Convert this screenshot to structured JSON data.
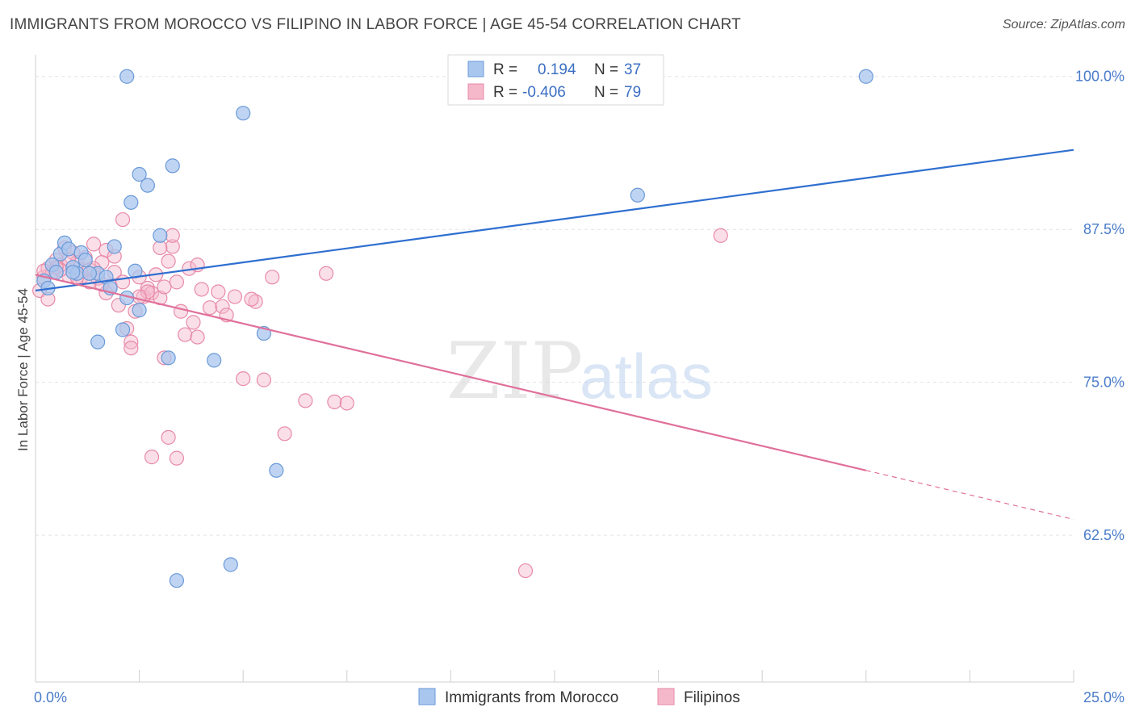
{
  "header": {
    "title": "IMMIGRANTS FROM MOROCCO VS FILIPINO IN LABOR FORCE | AGE 45-54 CORRELATION CHART",
    "source": "Source: ZipAtlas.com"
  },
  "watermark": {
    "zip": "ZIP",
    "atlas": "atlas"
  },
  "colors": {
    "blue_fill": "#a9c6ee",
    "blue_stroke": "#6a9ad8",
    "blue_line": "#2f6fd0",
    "pink_fill": "#f5b8cb",
    "pink_stroke": "#e88aa8",
    "pink_line": "#e0709a"
  },
  "chart_data": {
    "type": "scatter",
    "title": "IMMIGRANTS FROM MOROCCO VS FILIPINO IN LABOR FORCE | AGE 45-54 CORRELATION CHART",
    "ylabel": "In Labor Force | Age 45-54",
    "xlim": [
      0,
      25
    ],
    "ylim": [
      50.5,
      101.5
    ],
    "x_ticks": [
      "0.0%",
      "25.0%"
    ],
    "y_ticks": [
      {
        "value": 100,
        "label": "100.0%"
      },
      {
        "value": 87.5,
        "label": "87.5%"
      },
      {
        "value": 75,
        "label": "75.0%"
      },
      {
        "value": 62.5,
        "label": "62.5%"
      }
    ],
    "legend": [
      {
        "r_label": "R =",
        "r_value": "0.194",
        "n_label": "N =",
        "n_value": "37"
      },
      {
        "r_label": "R =",
        "r_value": "-0.406",
        "n_label": "N =",
        "n_value": "79"
      }
    ],
    "series": [
      {
        "name": "Immigrants from Morocco",
        "color": "#a9c6ee",
        "trend": {
          "x": [
            0,
            25
          ],
          "y": [
            82.5,
            94.0
          ],
          "solid_until": 25
        },
        "points": [
          [
            0.2,
            83.3
          ],
          [
            0.3,
            82.7
          ],
          [
            0.4,
            84.6
          ],
          [
            0.5,
            84.0
          ],
          [
            0.6,
            85.5
          ],
          [
            0.7,
            86.4
          ],
          [
            0.8,
            85.9
          ],
          [
            0.9,
            84.4
          ],
          [
            1.0,
            83.9
          ],
          [
            1.1,
            85.6
          ],
          [
            1.2,
            85.0
          ],
          [
            1.5,
            83.9
          ],
          [
            1.7,
            83.6
          ],
          [
            1.8,
            82.7
          ],
          [
            1.9,
            86.1
          ],
          [
            2.1,
            79.3
          ],
          [
            2.2,
            81.9
          ],
          [
            2.2,
            100.0
          ],
          [
            2.3,
            89.7
          ],
          [
            2.4,
            84.1
          ],
          [
            2.5,
            92.0
          ],
          [
            2.5,
            80.9
          ],
          [
            2.7,
            91.1
          ],
          [
            3.0,
            87.0
          ],
          [
            3.2,
            77.0
          ],
          [
            3.3,
            92.7
          ],
          [
            3.4,
            58.8
          ],
          [
            4.3,
            76.8
          ],
          [
            4.7,
            60.1
          ],
          [
            5.0,
            97.0
          ],
          [
            5.5,
            79.0
          ],
          [
            5.8,
            67.8
          ],
          [
            1.5,
            78.3
          ],
          [
            0.9,
            84.0
          ],
          [
            1.3,
            83.9
          ],
          [
            14.5,
            90.3
          ],
          [
            20.0,
            100.0
          ]
        ]
      },
      {
        "name": "Filipinos",
        "color": "#f5b8cb",
        "trend": {
          "x": [
            0,
            25
          ],
          "y": [
            83.8,
            63.8
          ],
          "solid_until": 20.0
        },
        "points": [
          [
            0.1,
            82.5
          ],
          [
            0.2,
            83.6
          ],
          [
            0.3,
            84.3
          ],
          [
            0.4,
            84.0
          ],
          [
            0.5,
            85.0
          ],
          [
            0.6,
            84.6
          ],
          [
            0.7,
            86.0
          ],
          [
            0.8,
            83.7
          ],
          [
            0.9,
            85.6
          ],
          [
            1.0,
            84.8
          ],
          [
            1.1,
            83.6
          ],
          [
            1.2,
            85.2
          ],
          [
            1.3,
            84.2
          ],
          [
            1.4,
            86.3
          ],
          [
            1.5,
            83.5
          ],
          [
            1.6,
            84.8
          ],
          [
            1.7,
            85.8
          ],
          [
            1.8,
            82.9
          ],
          [
            1.9,
            84.0
          ],
          [
            2.0,
            81.3
          ],
          [
            2.1,
            83.2
          ],
          [
            2.2,
            79.4
          ],
          [
            2.3,
            78.3
          ],
          [
            2.4,
            80.8
          ],
          [
            2.5,
            83.6
          ],
          [
            2.6,
            82.0
          ],
          [
            2.7,
            82.7
          ],
          [
            2.8,
            82.3
          ],
          [
            2.9,
            83.8
          ],
          [
            3.0,
            81.9
          ],
          [
            3.1,
            82.8
          ],
          [
            3.2,
            84.9
          ],
          [
            3.3,
            86.1
          ],
          [
            3.4,
            83.2
          ],
          [
            3.5,
            80.8
          ],
          [
            3.6,
            78.9
          ],
          [
            3.7,
            84.3
          ],
          [
            3.8,
            79.9
          ],
          [
            3.9,
            78.7
          ],
          [
            4.0,
            82.6
          ],
          [
            4.2,
            81.1
          ],
          [
            4.5,
            81.2
          ],
          [
            4.8,
            82.0
          ],
          [
            5.0,
            75.3
          ],
          [
            5.5,
            75.2
          ],
          [
            5.7,
            83.6
          ],
          [
            6.0,
            70.8
          ],
          [
            6.5,
            73.5
          ],
          [
            7.0,
            83.9
          ],
          [
            7.2,
            73.4
          ],
          [
            7.5,
            73.3
          ],
          [
            2.8,
            68.9
          ],
          [
            3.4,
            68.8
          ],
          [
            2.1,
            88.3
          ],
          [
            3.0,
            86.0
          ],
          [
            3.3,
            87.0
          ],
          [
            2.3,
            77.8
          ],
          [
            3.2,
            70.5
          ],
          [
            1.7,
            82.3
          ],
          [
            0.6,
            84.2
          ],
          [
            1.0,
            83.6
          ],
          [
            1.3,
            83.2
          ],
          [
            0.2,
            84.1
          ],
          [
            0.5,
            84.4
          ],
          [
            0.8,
            85.0
          ],
          [
            1.6,
            83.0
          ],
          [
            2.7,
            82.4
          ],
          [
            3.1,
            77.0
          ],
          [
            4.4,
            82.4
          ],
          [
            5.3,
            81.6
          ],
          [
            5.2,
            81.8
          ],
          [
            3.9,
            84.6
          ],
          [
            1.9,
            85.3
          ],
          [
            2.5,
            82.0
          ],
          [
            4.6,
            80.5
          ],
          [
            11.8,
            59.6
          ],
          [
            16.5,
            87.0
          ],
          [
            0.3,
            81.8
          ],
          [
            1.4,
            84.3
          ]
        ]
      }
    ]
  },
  "bottom_legend": [
    {
      "label": "Immigrants from Morocco"
    },
    {
      "label": "Filipinos"
    }
  ]
}
